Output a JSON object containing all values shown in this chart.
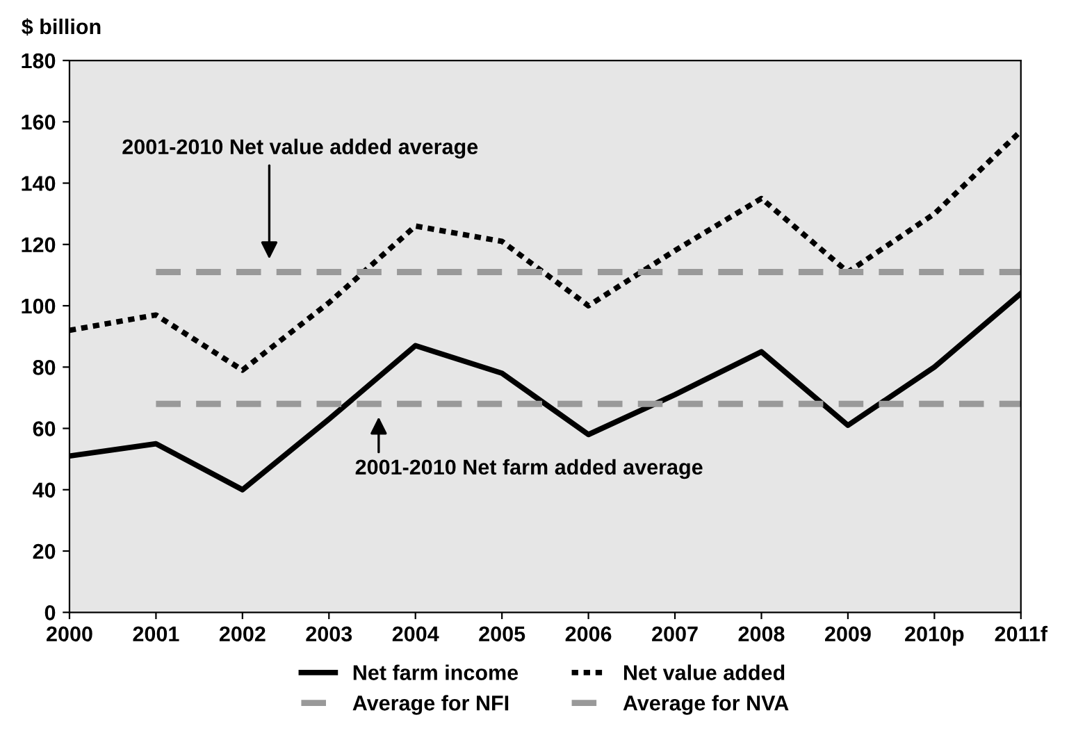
{
  "chart_data": {
    "type": "line",
    "ylabel": "$ billion",
    "categories": [
      "2000",
      "2001",
      "2002",
      "2003",
      "2004",
      "2005",
      "2006",
      "2007",
      "2008",
      "2009",
      "2010p",
      "2011f"
    ],
    "series": [
      {
        "name": "Net farm income",
        "color": "#000000",
        "line_style": "solid",
        "values": [
          51,
          55,
          40,
          63,
          87,
          78,
          58,
          71,
          85,
          61,
          80,
          104
        ]
      },
      {
        "name": "Net value added",
        "color": "#000000",
        "line_style": "dotted",
        "values": [
          92,
          97,
          79,
          101,
          126,
          121,
          100,
          118,
          135,
          111,
          130,
          157
        ]
      },
      {
        "name": "Average for NFI",
        "color": "#999999",
        "line_style": "dashed",
        "values": [
          null,
          68,
          68,
          68,
          68,
          68,
          68,
          68,
          68,
          68,
          68,
          68
        ]
      },
      {
        "name": "Average for NVA",
        "color": "#999999",
        "line_style": "dashed",
        "values": [
          null,
          111,
          111,
          111,
          111,
          111,
          111,
          111,
          111,
          111,
          111,
          111
        ]
      }
    ],
    "ylim": [
      0,
      180
    ],
    "yticks": [
      0,
      20,
      40,
      60,
      80,
      100,
      120,
      140,
      160,
      180
    ],
    "annotations": [
      "2001-2010 Net value added average",
      "2001-2010 Net farm added average"
    ],
    "legend": "bottom",
    "marker": "none",
    "grid": false
  }
}
